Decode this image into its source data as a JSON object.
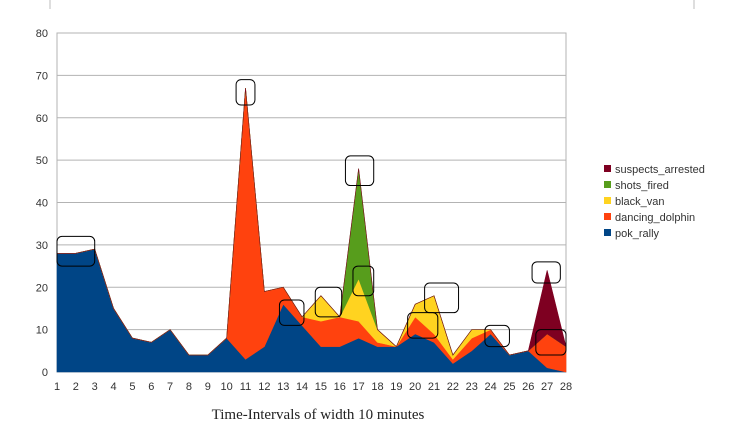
{
  "chart_data": {
    "type": "area",
    "stacked": true,
    "xlabel": "Time-Intervals of width 10 minutes",
    "ylabel": "",
    "ylim": [
      0,
      80
    ],
    "yticks": [
      0,
      10,
      20,
      30,
      40,
      50,
      60,
      70,
      80
    ],
    "x": [
      1,
      2,
      3,
      4,
      5,
      6,
      7,
      8,
      9,
      10,
      11,
      12,
      13,
      14,
      15,
      16,
      17,
      18,
      19,
      20,
      21,
      22,
      23,
      24,
      25,
      26,
      27,
      28
    ],
    "grid": "horizontal",
    "legend_position": "right",
    "series": [
      {
        "name": "pok_rally",
        "color": "#004586",
        "values": [
          28,
          28,
          29,
          15,
          8,
          7,
          10,
          4,
          4,
          8,
          3,
          6,
          16,
          11,
          6,
          6,
          8,
          6,
          6,
          9,
          7,
          2,
          5,
          9,
          4,
          5,
          1,
          0
        ]
      },
      {
        "name": "dancing_dolphin",
        "color": "#ff420e",
        "values": [
          0,
          0,
          0,
          0,
          0,
          0,
          0,
          0,
          0,
          0,
          64,
          13,
          4,
          2,
          6,
          7,
          4,
          1,
          0,
          4,
          2,
          1,
          3,
          1,
          0,
          0,
          8,
          6
        ]
      },
      {
        "name": "black_van",
        "color": "#ffd320",
        "values": [
          0,
          0,
          0,
          0,
          0,
          0,
          0,
          0,
          0,
          0,
          0,
          0,
          0,
          0,
          6,
          0,
          10,
          3,
          0,
          3,
          9,
          1,
          2,
          0,
          0,
          0,
          0,
          0
        ]
      },
      {
        "name": "shots_fired",
        "color": "#579d1c",
        "values": [
          0,
          0,
          0,
          0,
          0,
          0,
          0,
          0,
          0,
          0,
          0,
          0,
          0,
          0,
          0,
          0,
          26,
          0,
          0,
          0,
          0,
          0,
          0,
          0,
          0,
          0,
          0,
          0
        ]
      },
      {
        "name": "suspects_arrested",
        "color": "#7e0021",
        "values": [
          0,
          0,
          0,
          0,
          0,
          0,
          0,
          0,
          0,
          0,
          0,
          0,
          0,
          0,
          0,
          0,
          0,
          0,
          0,
          0,
          0,
          0,
          0,
          0,
          0,
          0,
          15,
          0
        ]
      }
    ],
    "legend_order": [
      "suspects_arrested",
      "shots_fired",
      "black_van",
      "dancing_dolphin",
      "pok_rally"
    ],
    "highlight_boxes": [
      {
        "x": [
          1,
          3
        ],
        "y": [
          25,
          32
        ]
      },
      {
        "x": [
          10.5,
          11.5
        ],
        "y": [
          63,
          69
        ]
      },
      {
        "x": [
          12.8,
          14.1
        ],
        "y": [
          11,
          17
        ]
      },
      {
        "x": [
          14.7,
          16.1
        ],
        "y": [
          13,
          20
        ]
      },
      {
        "x": [
          16.3,
          17.8
        ],
        "y": [
          44,
          51
        ]
      },
      {
        "x": [
          16.7,
          17.8
        ],
        "y": [
          18,
          25
        ]
      },
      {
        "x": [
          19.6,
          21.2
        ],
        "y": [
          8,
          14
        ]
      },
      {
        "x": [
          20.5,
          22.3
        ],
        "y": [
          14,
          21
        ]
      },
      {
        "x": [
          23.7,
          25.0
        ],
        "y": [
          6,
          11
        ]
      },
      {
        "x": [
          26.2,
          27.7
        ],
        "y": [
          21,
          26
        ]
      },
      {
        "x": [
          26.4,
          28.0
        ],
        "y": [
          4,
          10
        ]
      }
    ]
  }
}
